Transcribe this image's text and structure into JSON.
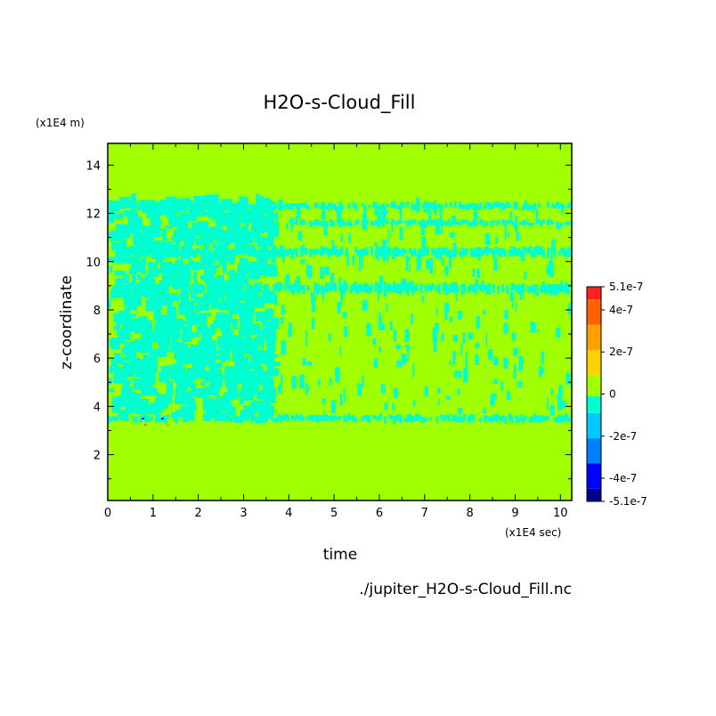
{
  "chart_data": {
    "type": "heatmap",
    "title": "H2O-s-Cloud_Fill",
    "xlabel": "time",
    "ylabel": "z-coordinate",
    "x_unit": "(x1E4 sec)",
    "y_unit": "(x1E4 m)",
    "xlim": [
      0,
      10.25
    ],
    "ylim": [
      0.1,
      14.9
    ],
    "x_ticks": [
      "0",
      "1",
      "2",
      "3",
      "4",
      "5",
      "6",
      "7",
      "8",
      "9",
      "10"
    ],
    "y_ticks": [
      "2",
      "4",
      "6",
      "8",
      "10",
      "12",
      "14"
    ],
    "background_value": 0,
    "colorbar": {
      "range": [
        -5.1e-07,
        5.1e-07
      ],
      "labels": [
        {
          "text": "5.1e-7",
          "value": 5.1e-07
        },
        {
          "text": "4e-7",
          "value": 4e-07
        },
        {
          "text": "2e-7",
          "value": 2e-07
        },
        {
          "text": "0",
          "value": 0
        },
        {
          "text": "-2e-7",
          "value": -2e-07
        },
        {
          "text": "-4e-7",
          "value": -4e-07
        },
        {
          "text": "-5.1e-7",
          "value": -5.1e-07
        }
      ],
      "bins": [
        {
          "from": -5.1e-07,
          "to": -4.5e-07,
          "color": "#00008b"
        },
        {
          "from": -4.5e-07,
          "to": -3.3e-07,
          "color": "#0000ff"
        },
        {
          "from": -3.3e-07,
          "to": -2.1e-07,
          "color": "#0080ff"
        },
        {
          "from": -2.1e-07,
          "to": -9e-08,
          "color": "#00c8ff"
        },
        {
          "from": -9e-08,
          "to": -1e-08,
          "color": "#00ffd0"
        },
        {
          "from": -1e-08,
          "to": 9e-08,
          "color": "#a0ff00"
        },
        {
          "from": 9e-08,
          "to": 2.1e-07,
          "color": "#ffd000"
        },
        {
          "from": 2.1e-07,
          "to": 3.3e-07,
          "color": "#ffa000"
        },
        {
          "from": 3.3e-07,
          "to": 4.5e-07,
          "color": "#ff6000"
        },
        {
          "from": 4.5e-07,
          "to": 5.1e-07,
          "color": "#ff2020"
        }
      ]
    },
    "dominant_features": [
      {
        "label": "negative layer (cyan)",
        "z_from": 3.3,
        "z_to": 12.4,
        "t_from": 0,
        "t_to": 10.25
      },
      {
        "label": "negative band",
        "z": 12.3,
        "t_from": 0,
        "t_to": 10.25
      },
      {
        "label": "negative band",
        "z": 10.4,
        "t_from": 0,
        "t_to": 10.25
      },
      {
        "label": "negative band",
        "z": 8.9,
        "t_from": 0,
        "t_to": 10.25
      },
      {
        "label": "negative band",
        "z": 3.5,
        "t_from": 0,
        "t_to": 10.25
      }
    ]
  },
  "source": "./jupiter_H2O-s-Cloud_Fill.nc",
  "colors": {
    "zero": "#a0ff00",
    "negative_small": "#00ffd0"
  }
}
